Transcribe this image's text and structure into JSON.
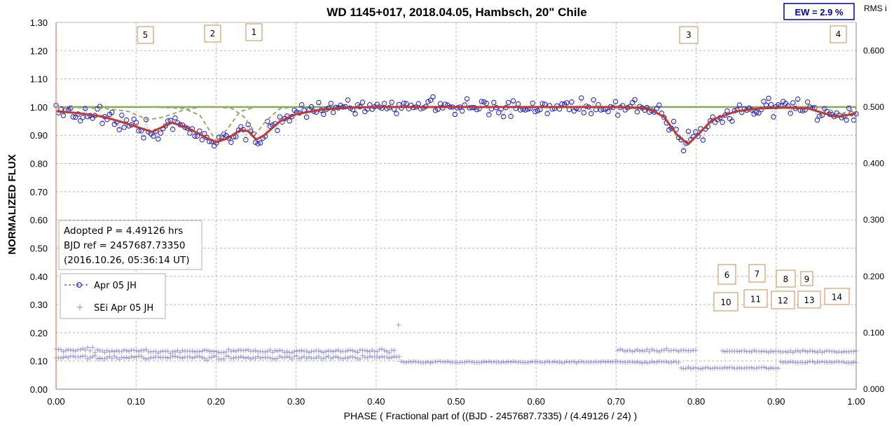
{
  "chart_data": {
    "type": "scatter",
    "title": "WD 1145+017, 2018.04.05, Hambsch, 20\" Chile",
    "ew_label": "EW =  2.9 %",
    "right_axis_label": "RMS i",
    "xlabel": "PHASE  ( Fractional part of ((BJD - 2457687.7335)  / (4.49126  / 24) )",
    "ylabel": "NORMALIZED  FLUX",
    "xlim": [
      0,
      1
    ],
    "ylim": [
      0,
      1.3
    ],
    "ylim_right": [
      0,
      0.65
    ],
    "x_ticks": [
      "0.00",
      "0.10",
      "0.20",
      "0.30",
      "0.40",
      "0.50",
      "0.60",
      "0.70",
      "0.80",
      "0.90",
      "1.00"
    ],
    "y_ticks": [
      "0.00",
      "0.10",
      "0.20",
      "0.30",
      "0.40",
      "0.50",
      "0.60",
      "0.70",
      "0.80",
      "0.90",
      "1.00",
      "1.10",
      "1.20",
      "1.30"
    ],
    "y_ticks_right": [
      "0.000",
      "0.100",
      "0.200",
      "0.300",
      "0.400",
      "0.500",
      "0.600"
    ],
    "grid": true,
    "info_lines": [
      "Adopted P = 4.49126 hrs",
      "BJD ref = 2457687.73350",
      "(2016.10.26, 05:36:14 UT)"
    ],
    "legend": {
      "placement": "left",
      "entries": [
        "Apr 05 JH",
        "SEi Apr 05 JH"
      ]
    },
    "dip_markers": [
      {
        "label": "5",
        "x": 0.11
      },
      {
        "label": "2",
        "x": 0.195
      },
      {
        "label": "1",
        "x": 0.25
      },
      {
        "label": "3",
        "x": 0.79
      },
      {
        "label": "4",
        "x": 0.975
      }
    ],
    "dip_markers_lower": [
      "6",
      "7",
      "8",
      "9",
      "10",
      "11",
      "12",
      "13",
      "14"
    ],
    "reference_level": 1.0,
    "model_curve": [
      [
        0.0,
        0.985
      ],
      [
        0.03,
        0.978
      ],
      [
        0.06,
        0.965
      ],
      [
        0.09,
        0.94
      ],
      [
        0.12,
        0.912
      ],
      [
        0.145,
        0.945
      ],
      [
        0.165,
        0.925
      ],
      [
        0.185,
        0.895
      ],
      [
        0.2,
        0.875
      ],
      [
        0.215,
        0.89
      ],
      [
        0.23,
        0.918
      ],
      [
        0.24,
        0.915
      ],
      [
        0.25,
        0.885
      ],
      [
        0.26,
        0.9
      ],
      [
        0.28,
        0.95
      ],
      [
        0.3,
        0.975
      ],
      [
        0.33,
        0.99
      ],
      [
        0.36,
        0.997
      ],
      [
        0.4,
        1.0
      ],
      [
        0.5,
        1.0
      ],
      [
        0.6,
        1.0
      ],
      [
        0.7,
        1.0
      ],
      [
        0.74,
        0.995
      ],
      [
        0.76,
        0.965
      ],
      [
        0.775,
        0.905
      ],
      [
        0.79,
        0.868
      ],
      [
        0.805,
        0.91
      ],
      [
        0.82,
        0.955
      ],
      [
        0.85,
        0.985
      ],
      [
        0.88,
        0.995
      ],
      [
        0.91,
        0.998
      ],
      [
        0.94,
        0.995
      ],
      [
        0.96,
        0.978
      ],
      [
        0.975,
        0.965
      ],
      [
        0.99,
        0.972
      ],
      [
        1.0,
        0.978
      ]
    ],
    "component_curves": [
      [
        [
          0.0,
          1.0
        ],
        [
          0.06,
          0.995
        ],
        [
          0.09,
          0.985
        ],
        [
          0.115,
          0.955
        ],
        [
          0.135,
          0.965
        ],
        [
          0.16,
          0.99
        ],
        [
          0.18,
          1.0
        ],
        [
          0.25,
          1.0
        ]
      ],
      [
        [
          0.12,
          1.0
        ],
        [
          0.16,
          0.995
        ],
        [
          0.18,
          0.97
        ],
        [
          0.2,
          0.88
        ],
        [
          0.215,
          0.925
        ],
        [
          0.23,
          0.985
        ],
        [
          0.25,
          1.0
        ]
      ],
      [
        [
          0.2,
          1.0
        ],
        [
          0.22,
          0.995
        ],
        [
          0.235,
          0.965
        ],
        [
          0.25,
          0.905
        ],
        [
          0.262,
          0.95
        ],
        [
          0.28,
          0.995
        ],
        [
          0.3,
          1.0
        ]
      ],
      [
        [
          0.95,
          1.0
        ],
        [
          0.965,
          0.995
        ],
        [
          0.978,
          0.972
        ],
        [
          0.99,
          0.985
        ],
        [
          1.0,
          0.995
        ]
      ]
    ],
    "series": [
      {
        "name": "Apr 05 JH",
        "marker": "circle",
        "color": "#1c1cc8",
        "values": []
      },
      {
        "name": "SEi Apr 05 JH",
        "marker": "plus",
        "color": "#9a9ad8",
        "values": []
      }
    ],
    "colors": {
      "data": "#1c1cc8",
      "model": "#c0392b",
      "component": "#9aab6e",
      "reference": "#86a85a",
      "noise": "#9a9ad8",
      "marker_border": "#d08a4e",
      "ew_border": "#0000a0"
    }
  }
}
